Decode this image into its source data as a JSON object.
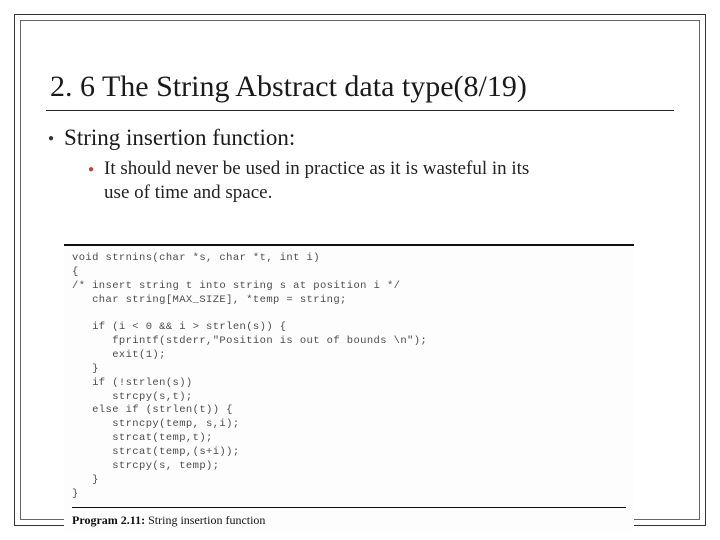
{
  "slide": {
    "title": "2. 6 The String Abstract data type(8/19)",
    "title_color": "#1a1a1a",
    "title_fontsize": 30,
    "bullet1": {
      "text": "String insertion function:",
      "dot_color": "#333333",
      "fontsize": 23
    },
    "bullet2": {
      "text": "It should never be used in practice as it is wasteful in its use of time and space.",
      "dot_color": "#c4442a",
      "fontsize": 19
    },
    "code": {
      "font_family": "Courier New",
      "fontsize": 10.5,
      "text_color": "#4b4b4b",
      "border_color": "#111111",
      "lines": [
        "void strnins(char *s, char *t, int i)",
        "{",
        "/* insert string t into string s at position i */",
        "   char string[MAX_SIZE], *temp = string;",
        "",
        "   if (i < 0 && i > strlen(s)) {",
        "      fprintf(stderr,\"Position is out of bounds \\n\");",
        "      exit(1);",
        "   }",
        "   if (!strlen(s))",
        "      strcpy(s,t);",
        "   else if (strlen(t)) {",
        "      strncpy(temp, s,i);",
        "      strcat(temp,t);",
        "      strcat(temp,(s+i));",
        "      strcpy(s, temp);",
        "   }",
        "}"
      ],
      "caption_label": "Program 2.11:",
      "caption_text": " String insertion function"
    },
    "frame": {
      "outer_border_color": "#333333",
      "inner_border_color": "#666666",
      "background": "#ffffff"
    }
  }
}
